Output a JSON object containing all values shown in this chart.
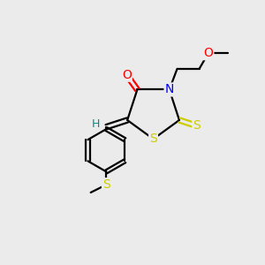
{
  "background_color": "#ebebeb",
  "bond_color": "#000000",
  "atom_colors": {
    "O": "#ff0000",
    "N": "#0000ff",
    "S": "#cccc00",
    "H": "#008b8b",
    "C": "#000000"
  },
  "figsize": [
    3.0,
    3.0
  ],
  "dpi": 100
}
